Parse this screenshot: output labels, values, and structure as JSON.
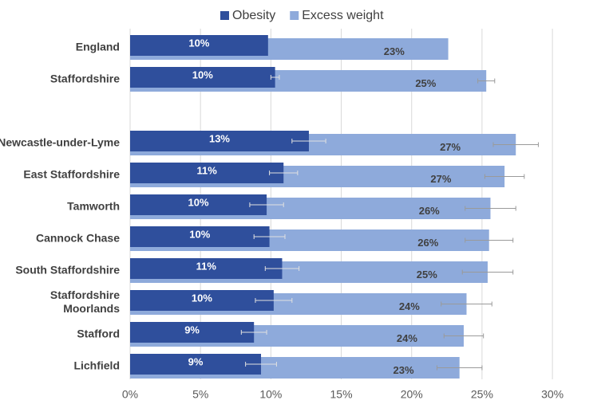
{
  "chart_data": {
    "type": "bar",
    "orientation": "horizontal",
    "overlap": true,
    "categories": [
      "England",
      "Staffordshire",
      null,
      "Newcastle-under-Lyme",
      "East Staffordshire",
      "Tamworth",
      "Cannock Chase",
      "South Staffordshire",
      "Staffordshire\nMoorlands",
      "Stafford",
      "Lichfield"
    ],
    "series": [
      {
        "name": "Obesity",
        "color": "#2f4f9c",
        "values": [
          9.8,
          10.3,
          null,
          12.7,
          10.9,
          9.7,
          9.9,
          10.8,
          10.2,
          8.8,
          9.3
        ],
        "value_labels": [
          "10%",
          "10%",
          null,
          "13%",
          "11%",
          "10%",
          "10%",
          "11%",
          "10%",
          "9%",
          "9%"
        ],
        "errors": [
          null,
          0.3,
          null,
          1.2,
          1.0,
          1.2,
          1.1,
          1.2,
          1.3,
          0.9,
          1.1
        ]
      },
      {
        "name": "Excess weight",
        "color": "#8eaadb",
        "values": [
          22.6,
          25.3,
          null,
          27.4,
          26.6,
          25.6,
          25.5,
          25.4,
          23.9,
          23.7,
          23.4
        ],
        "value_labels": [
          "23%",
          "25%",
          null,
          "27%",
          "27%",
          "26%",
          "26%",
          "25%",
          "24%",
          "24%",
          "23%"
        ],
        "errors": [
          null,
          0.6,
          null,
          1.6,
          1.4,
          1.8,
          1.7,
          1.8,
          1.8,
          1.4,
          1.6
        ]
      }
    ],
    "xlim": [
      0,
      33
    ],
    "xticks": [
      {
        "value": 0,
        "label": "0%"
      },
      {
        "value": 5,
        "label": "5%"
      },
      {
        "value": 10,
        "label": "10%"
      },
      {
        "value": 15,
        "label": "15%"
      },
      {
        "value": 20,
        "label": "20%"
      },
      {
        "value": 25,
        "label": "25%"
      },
      {
        "value": 30,
        "label": "30%"
      }
    ],
    "grid": true,
    "legend": "top"
  }
}
